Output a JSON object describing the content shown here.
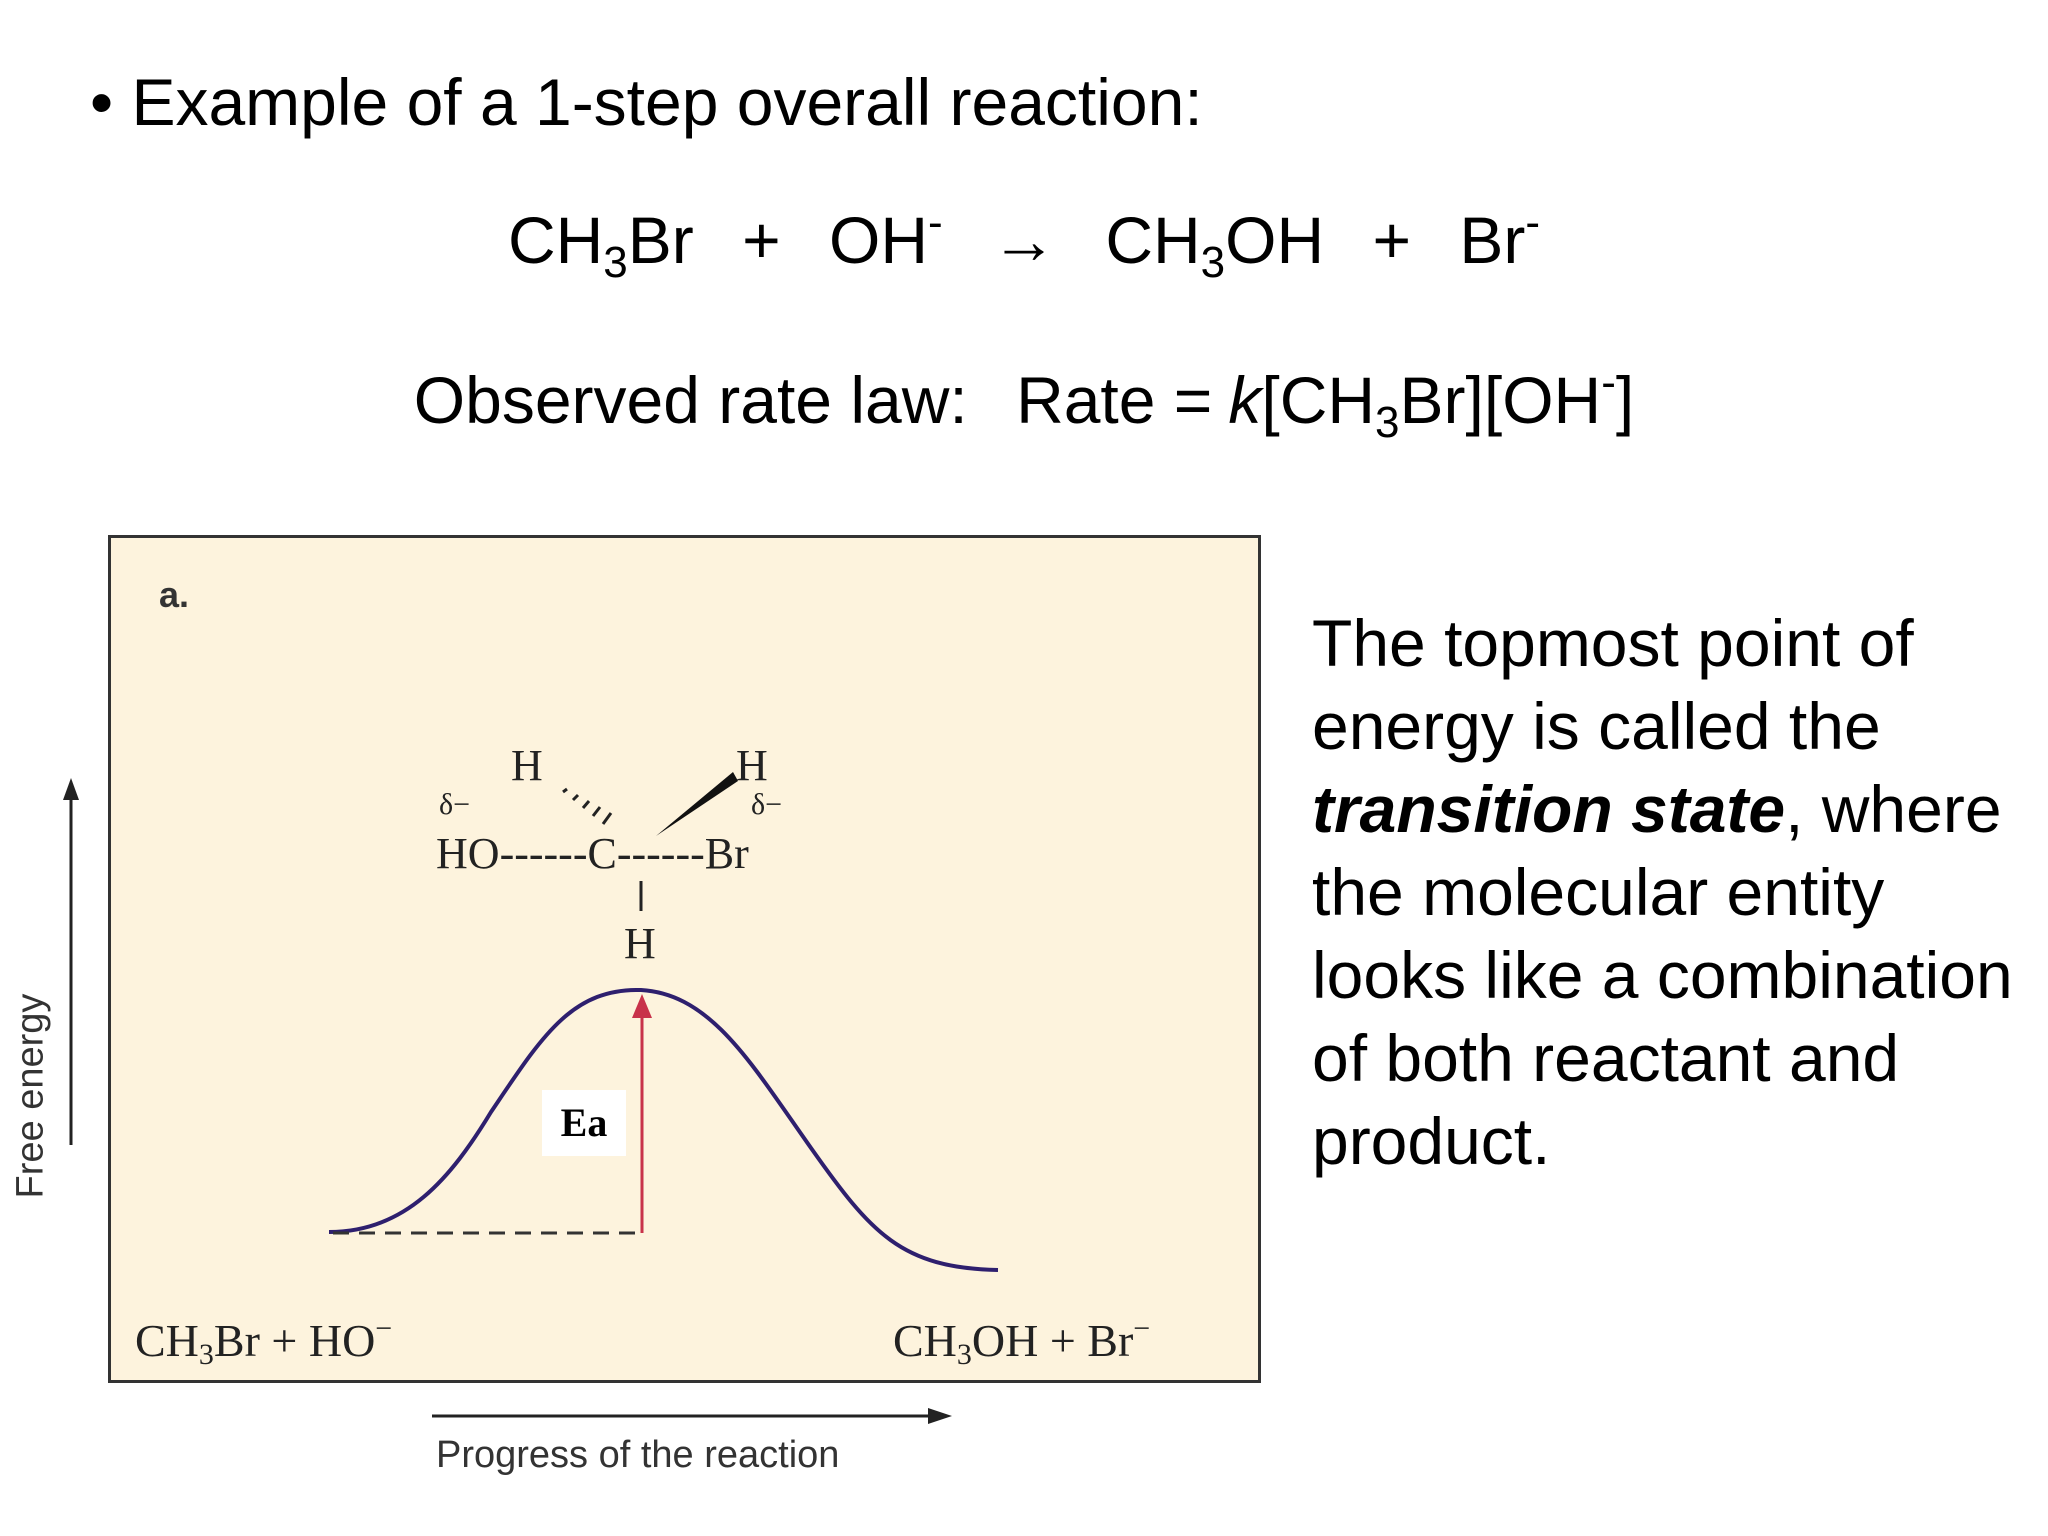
{
  "slide": {
    "bullet": "•",
    "heading": "Example of a 1-step overall reaction:"
  },
  "reaction": {
    "reactant1_a": "CH",
    "reactant1_sub": "3",
    "reactant1_b": "Br",
    "plus1": "+",
    "reactant2": "OH",
    "reactant2_sup": "-",
    "arrow": "→",
    "product1_a": "CH",
    "product1_sub": "3",
    "product1_b": "OH",
    "plus2": "+",
    "product2": "Br",
    "product2_sup": "-"
  },
  "rate_law": {
    "label": "Observed rate law:",
    "rate_word": "Rate =",
    "k": "k",
    "conc1_a": "[CH",
    "conc1_sub": "3",
    "conc1_b": "Br]",
    "conc2_a": "[OH",
    "conc2_sup": "-",
    "conc2_b": "]"
  },
  "explanation": {
    "line1": "The topmost point of",
    "line2": "energy is called the",
    "term": "transition state",
    "line3_rest": ", where",
    "line4": "the molecular entity",
    "line5": "looks like a combination",
    "line6": "of both reactant and",
    "line7": "product."
  },
  "diagram": {
    "panel_label": "a.",
    "ea_label": "Ea",
    "y_axis_label": "Free energy",
    "x_axis_label": "Progress of the reaction",
    "reactants": {
      "a": "CH",
      "sub": "3",
      "b": "Br + HO",
      "sup": "−"
    },
    "products": {
      "a": "CH",
      "sub": "3",
      "b": "OH + Br",
      "sup": "−"
    },
    "transition_state": {
      "h_top_left": "H",
      "h_top_right": "H",
      "delta_left": "δ−",
      "delta_right": "δ−",
      "ho": "HO",
      "c": "C",
      "br": "Br",
      "h_bottom": "H",
      "bond_left": "------",
      "bond_right": "------"
    },
    "colors": {
      "background": "#fdf3dd",
      "curve": "#2e1f6e",
      "ea_arrow": "#c8324a"
    }
  }
}
